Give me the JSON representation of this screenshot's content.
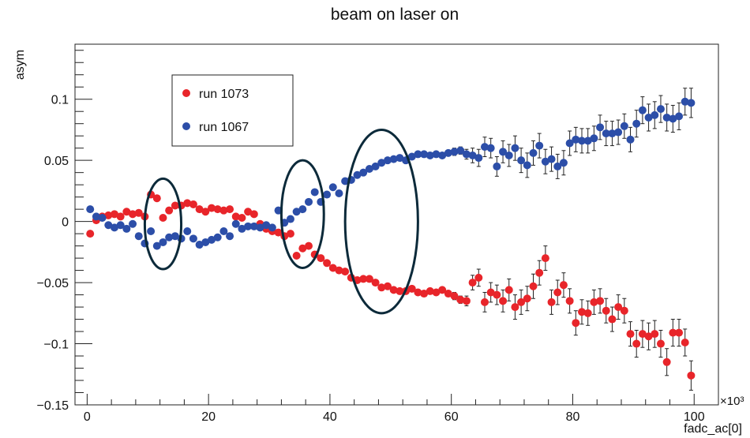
{
  "chart_data": {
    "type": "scatter",
    "title": "beam on laser on",
    "xlabel": "fadc_ac[0]",
    "ylabel": "asym",
    "x_exponent_label": "×10³",
    "xlim": [
      -2,
      104
    ],
    "ylim": [
      -0.15,
      0.145
    ],
    "x_ticks": [
      0,
      20,
      40,
      60,
      80,
      100
    ],
    "x_tick_labels": [
      "0",
      "20",
      "40",
      "60",
      "80",
      "100"
    ],
    "y_ticks": [
      -0.15,
      -0.1,
      -0.05,
      0,
      0.05,
      0.1
    ],
    "y_tick_labels": [
      "−0.15",
      "−0.1",
      "−0.05",
      "0",
      "0.05",
      "0.1"
    ],
    "grid": false,
    "legend_position": "top-left",
    "series": [
      {
        "name": "run 1073",
        "color": "#e8252a",
        "x": [
          0.5,
          1.5,
          2.5,
          3.5,
          4.5,
          5.5,
          6.5,
          7.5,
          8.5,
          9.5,
          10.5,
          11.5,
          12.5,
          13.5,
          14.5,
          15.5,
          16.5,
          17.5,
          18.5,
          19.5,
          20.5,
          21.5,
          22.5,
          23.5,
          24.5,
          25.5,
          26.5,
          27.5,
          28.5,
          29.5,
          30.5,
          31.5,
          32.5,
          33.5,
          34.5,
          35.5,
          36.5,
          37.5,
          38.5,
          39.5,
          40.5,
          41.5,
          42.5,
          43.5,
          44.5,
          45.5,
          46.5,
          47.5,
          48.5,
          49.5,
          50.5,
          51.5,
          52.5,
          53.5,
          54.5,
          55.5,
          56.5,
          57.5,
          58.5,
          59.5,
          60.5,
          61.5,
          62.5,
          63.5,
          64.5,
          65.5,
          66.5,
          67.5,
          68.5,
          69.5,
          70.5,
          71.5,
          72.5,
          73.5,
          74.5,
          75.5,
          76.5,
          77.5,
          78.5,
          79.5,
          80.5,
          81.5,
          82.5,
          83.5,
          84.5,
          85.5,
          86.5,
          87.5,
          88.5,
          89.5,
          90.5,
          91.5,
          92.5,
          93.5,
          94.5,
          95.5,
          96.5,
          97.5,
          98.5,
          99.5
        ],
        "y": [
          -0.01,
          0.001,
          0.004,
          0.005,
          0.006,
          0.004,
          0.008,
          0.006,
          0.007,
          0.004,
          0.022,
          0.019,
          0.003,
          0.009,
          0.013,
          0.013,
          0.015,
          0.014,
          0.01,
          0.008,
          0.011,
          0.01,
          0.009,
          0.01,
          0.004,
          0.003,
          0.008,
          0.006,
          -0.002,
          -0.006,
          -0.008,
          -0.009,
          -0.012,
          -0.01,
          -0.028,
          -0.022,
          -0.02,
          -0.027,
          -0.03,
          -0.034,
          -0.038,
          -0.04,
          -0.041,
          -0.046,
          -0.048,
          -0.047,
          -0.047,
          -0.05,
          -0.054,
          -0.053,
          -0.056,
          -0.057,
          -0.057,
          -0.055,
          -0.058,
          -0.059,
          -0.057,
          -0.058,
          -0.056,
          -0.059,
          -0.061,
          -0.064,
          -0.065,
          -0.05,
          -0.046,
          -0.066,
          -0.058,
          -0.06,
          -0.065,
          -0.056,
          -0.07,
          -0.066,
          -0.063,
          -0.053,
          -0.042,
          -0.03,
          -0.066,
          -0.058,
          -0.052,
          -0.065,
          -0.083,
          -0.074,
          -0.075,
          -0.066,
          -0.065,
          -0.073,
          -0.08,
          -0.07,
          -0.073,
          -0.092,
          -0.1,
          -0.092,
          -0.094,
          -0.092,
          -0.1,
          -0.115,
          -0.091,
          -0.091,
          -0.099,
          -0.126
        ],
        "err": [
          0.002,
          0.002,
          0.002,
          0.002,
          0.002,
          0.002,
          0.002,
          0.002,
          0.002,
          0.002,
          0.002,
          0.002,
          0.002,
          0.002,
          0.002,
          0.002,
          0.002,
          0.002,
          0.002,
          0.002,
          0.002,
          0.002,
          0.002,
          0.002,
          0.002,
          0.002,
          0.002,
          0.002,
          0.002,
          0.002,
          0.002,
          0.002,
          0.002,
          0.002,
          0.002,
          0.002,
          0.002,
          0.002,
          0.002,
          0.002,
          0.002,
          0.002,
          0.002,
          0.002,
          0.002,
          0.002,
          0.002,
          0.002,
          0.002,
          0.002,
          0.002,
          0.002,
          0.002,
          0.002,
          0.002,
          0.002,
          0.002,
          0.002,
          0.002,
          0.002,
          0.003,
          0.003,
          0.004,
          0.006,
          0.007,
          0.008,
          0.008,
          0.008,
          0.009,
          0.009,
          0.01,
          0.01,
          0.01,
          0.01,
          0.01,
          0.01,
          0.01,
          0.01,
          0.01,
          0.01,
          0.01,
          0.01,
          0.01,
          0.01,
          0.01,
          0.01,
          0.01,
          0.01,
          0.01,
          0.01,
          0.011,
          0.011,
          0.011,
          0.011,
          0.011,
          0.011,
          0.011,
          0.011,
          0.011,
          0.012
        ]
      },
      {
        "name": "run 1067",
        "color": "#2c4ea8",
        "x": [
          0.5,
          1.5,
          2.5,
          3.5,
          4.5,
          5.5,
          6.5,
          7.5,
          8.5,
          9.5,
          10.5,
          11.5,
          12.5,
          13.5,
          14.5,
          15.5,
          16.5,
          17.5,
          18.5,
          19.5,
          20.5,
          21.5,
          22.5,
          23.5,
          24.5,
          25.5,
          26.5,
          27.5,
          28.5,
          29.5,
          30.5,
          31.5,
          32.5,
          33.5,
          34.5,
          35.5,
          36.5,
          37.5,
          38.5,
          39.5,
          40.5,
          41.5,
          42.5,
          43.5,
          44.5,
          45.5,
          46.5,
          47.5,
          48.5,
          49.5,
          50.5,
          51.5,
          52.5,
          53.5,
          54.5,
          55.5,
          56.5,
          57.5,
          58.5,
          59.5,
          60.5,
          61.5,
          62.5,
          63.5,
          64.5,
          65.5,
          66.5,
          67.5,
          68.5,
          69.5,
          70.5,
          71.5,
          72.5,
          73.5,
          74.5,
          75.5,
          76.5,
          77.5,
          78.5,
          79.5,
          80.5,
          81.5,
          82.5,
          83.5,
          84.5,
          85.5,
          86.5,
          87.5,
          88.5,
          89.5,
          90.5,
          91.5,
          92.5,
          93.5,
          94.5,
          95.5,
          96.5,
          97.5,
          98.5,
          99.5
        ],
        "y": [
          0.01,
          0.004,
          0.003,
          -0.003,
          -0.005,
          -0.003,
          -0.006,
          -0.002,
          -0.012,
          -0.018,
          -0.008,
          -0.02,
          -0.017,
          -0.013,
          -0.012,
          -0.014,
          -0.008,
          -0.014,
          -0.019,
          -0.017,
          -0.015,
          -0.013,
          -0.008,
          -0.012,
          -0.002,
          -0.006,
          -0.004,
          -0.004,
          -0.005,
          -0.003,
          -0.005,
          0.009,
          -0.001,
          0.002,
          0.008,
          0.01,
          0.016,
          0.024,
          0.016,
          0.022,
          0.028,
          0.023,
          0.033,
          0.034,
          0.038,
          0.04,
          0.043,
          0.045,
          0.048,
          0.05,
          0.051,
          0.052,
          0.05,
          0.053,
          0.055,
          0.055,
          0.054,
          0.055,
          0.054,
          0.056,
          0.057,
          0.058,
          0.055,
          0.054,
          0.052,
          0.061,
          0.06,
          0.045,
          0.057,
          0.054,
          0.06,
          0.05,
          0.046,
          0.056,
          0.062,
          0.049,
          0.051,
          0.045,
          0.048,
          0.064,
          0.067,
          0.066,
          0.066,
          0.068,
          0.077,
          0.072,
          0.072,
          0.073,
          0.078,
          0.067,
          0.08,
          0.091,
          0.085,
          0.087,
          0.092,
          0.085,
          0.084,
          0.086,
          0.098,
          0.097
        ],
        "err": [
          0.002,
          0.002,
          0.002,
          0.002,
          0.002,
          0.002,
          0.002,
          0.002,
          0.002,
          0.002,
          0.002,
          0.002,
          0.002,
          0.002,
          0.002,
          0.002,
          0.002,
          0.002,
          0.002,
          0.002,
          0.002,
          0.002,
          0.002,
          0.002,
          0.002,
          0.002,
          0.002,
          0.002,
          0.002,
          0.002,
          0.002,
          0.002,
          0.002,
          0.002,
          0.002,
          0.002,
          0.002,
          0.002,
          0.002,
          0.002,
          0.002,
          0.002,
          0.002,
          0.002,
          0.002,
          0.002,
          0.002,
          0.002,
          0.002,
          0.002,
          0.002,
          0.002,
          0.002,
          0.002,
          0.002,
          0.002,
          0.002,
          0.002,
          0.002,
          0.002,
          0.003,
          0.003,
          0.004,
          0.006,
          0.007,
          0.008,
          0.008,
          0.008,
          0.009,
          0.009,
          0.01,
          0.01,
          0.01,
          0.01,
          0.01,
          0.01,
          0.01,
          0.01,
          0.01,
          0.01,
          0.01,
          0.01,
          0.01,
          0.01,
          0.01,
          0.01,
          0.01,
          0.01,
          0.01,
          0.01,
          0.011,
          0.011,
          0.011,
          0.011,
          0.011,
          0.011,
          0.011,
          0.011,
          0.011,
          0.012
        ]
      }
    ],
    "annotations": [
      {
        "type": "ellipse",
        "cx": 12.5,
        "cy": -0.002,
        "rx": 3.0,
        "ry": 0.037,
        "color": "#0c2a3a"
      },
      {
        "type": "ellipse",
        "cx": 35.5,
        "cy": 0.006,
        "rx": 3.5,
        "ry": 0.044,
        "color": "#0c2a3a"
      },
      {
        "type": "ellipse",
        "cx": 48.5,
        "cy": 0.0,
        "rx": 6.0,
        "ry": 0.075,
        "color": "#0c2a3a"
      }
    ]
  }
}
